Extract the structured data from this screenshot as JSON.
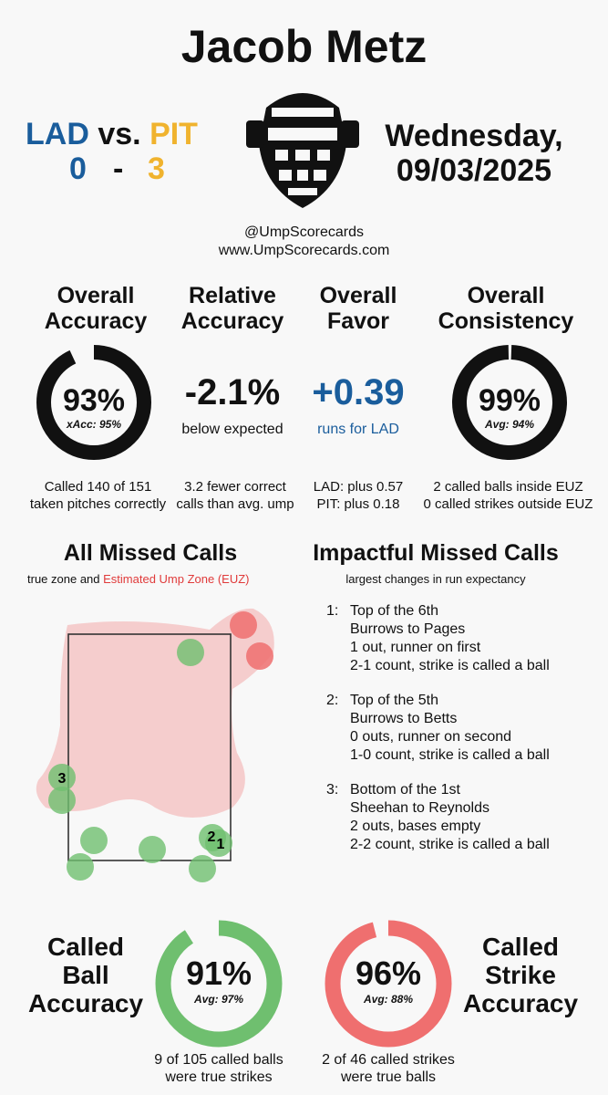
{
  "title": "Jacob Metz",
  "teams": {
    "away": "LAD",
    "vs": "vs.",
    "home": "PIT",
    "away_score": "0",
    "dash": "-",
    "home_score": "3"
  },
  "date": {
    "line1": "Wednesday,",
    "line2": "09/03/2025"
  },
  "handles": {
    "twitter": "@UmpScorecards",
    "site": "www.UmpScorecards.com"
  },
  "colors": {
    "lad": "#1a5d9c",
    "pit": "#f0b32e",
    "green": "#6fbf6f",
    "red": "#ef6f6f",
    "zone": "#f4c6c6",
    "missed_text": "#e03a3a"
  },
  "metrics": {
    "accuracy": {
      "h1": "Overall",
      "h2": "Accuracy",
      "value": "93%",
      "sub": "xAcc: 95%",
      "fraction": 0.93,
      "n1": "Called 140 of 151",
      "n2": "taken pitches correctly"
    },
    "relative": {
      "h1": "Relative",
      "h2": "Accuracy",
      "value": "-2.1%",
      "sub": "below expected",
      "n1": "3.2 fewer correct",
      "n2": "calls than avg. ump"
    },
    "favor": {
      "h1": "Overall",
      "h2": "Favor",
      "value": "+0.39",
      "sub": "runs for LAD",
      "n1": "LAD: plus 0.57",
      "n2": "PIT: plus 0.18"
    },
    "consistency": {
      "h1": "Overall",
      "h2": "Consistency",
      "value": "99%",
      "sub": "Avg: 94%",
      "fraction": 0.99,
      "n1": "2 called balls inside EUZ",
      "n2": "0 called strikes outside EUZ"
    }
  },
  "missed": {
    "title": "All Missed Calls",
    "sub_plain": "true zone and ",
    "sub_red": "Estimated Ump Zone (EUZ)"
  },
  "impactful": {
    "title": "Impactful Missed Calls",
    "sub": "largest changes in run expectancy",
    "items": [
      {
        "num": "1:",
        "l1": "Top of the 6th",
        "l2": "Burrows to Pages",
        "l3": "1 out, runner on first",
        "l4": "2-1 count, strike is called a ball"
      },
      {
        "num": "2:",
        "l1": "Top of the 5th",
        "l2": "Burrows to Betts",
        "l3": "0 outs, runner on second",
        "l4": "1-0 count, strike is called a ball"
      },
      {
        "num": "3:",
        "l1": "Bottom of the 1st",
        "l2": "Sheehan to Reynolds",
        "l3": "2 outs, bases empty",
        "l4": "2-2 count, strike is called a ball"
      }
    ]
  },
  "ball_acc": {
    "l1": "Called",
    "l2": "Ball",
    "l3": "Accuracy",
    "value": "91%",
    "sub": "Avg: 97%",
    "fraction": 0.91,
    "n1": "9 of 105 called balls",
    "n2": "were true strikes"
  },
  "strike_acc": {
    "l1": "Called",
    "l2": "Strike",
    "l3": "Accuracy",
    "value": "96%",
    "sub": "Avg: 88%",
    "fraction": 0.96,
    "n1": "2 of 46 called strikes",
    "n2": "were true balls"
  },
  "pitch_labels": [
    "3",
    "2",
    "1"
  ]
}
